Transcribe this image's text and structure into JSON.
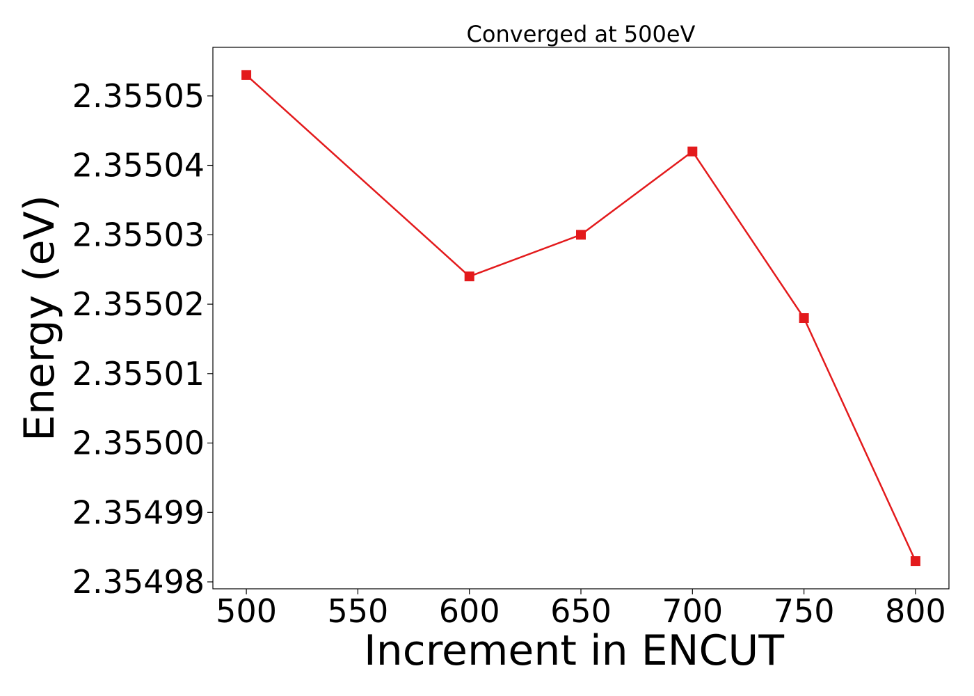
{
  "chart_data": {
    "type": "line",
    "title": "Converged at 500eV",
    "xlabel": "Increment in ENCUT",
    "ylabel": "Energy (eV)",
    "xlim": [
      485,
      815
    ],
    "ylim": [
      2.354979,
      2.355057
    ],
    "xticks": [
      500,
      550,
      600,
      650,
      700,
      750,
      800
    ],
    "yticks": [
      2.35498,
      2.35499,
      2.355,
      2.35501,
      2.35502,
      2.35503,
      2.35504,
      2.35505
    ],
    "ytick_labels": [
      "2.35498",
      "2.35499",
      "2.35500",
      "2.35501",
      "2.35502",
      "2.35503",
      "2.35504",
      "2.35505"
    ],
    "grid": false,
    "series": [
      {
        "marker": "square",
        "color": "#e31a1c",
        "x": [
          500,
          600,
          650,
          700,
          750,
          800
        ],
        "y": [
          2.355053,
          2.355024,
          2.35503,
          2.355042,
          2.355018,
          2.354983
        ]
      }
    ]
  }
}
